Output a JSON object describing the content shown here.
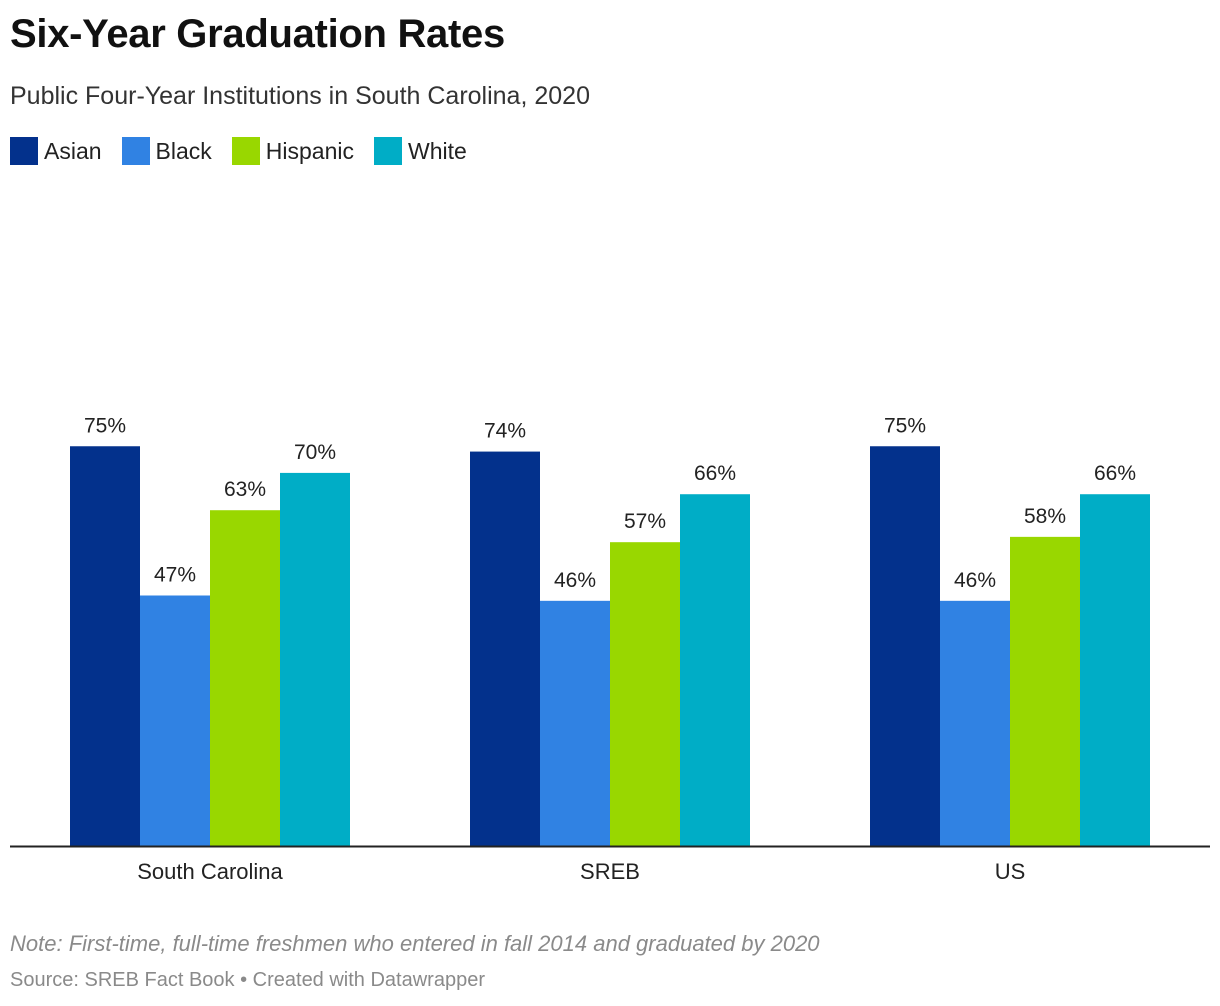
{
  "chart_data": {
    "type": "bar",
    "title": "Six-Year Graduation Rates",
    "subtitle": "Public Four-Year Institutions in South Carolina, 2020",
    "categories": [
      "South Carolina",
      "SREB",
      "US"
    ],
    "series": [
      {
        "name": "Asian",
        "color": "#03318c",
        "values": [
          75,
          74,
          75
        ],
        "labels": [
          "75%",
          "74%",
          "75%"
        ]
      },
      {
        "name": "Black",
        "color": "#3082e3",
        "values": [
          47,
          46,
          46
        ],
        "labels": [
          "47%",
          "46%",
          "46%"
        ]
      },
      {
        "name": "Hispanic",
        "color": "#99d700",
        "values": [
          63,
          57,
          58
        ],
        "labels": [
          "63%",
          "57%",
          "58%"
        ]
      },
      {
        "name": "White",
        "color": "#00adc6",
        "values": [
          70,
          66,
          66
        ],
        "labels": [
          "70%",
          "66%",
          "66%"
        ]
      }
    ],
    "ylim": [
      0,
      80
    ],
    "grid": false,
    "legend_position": "top-left",
    "note": "Note: First-time, full-time freshmen who entered in fall 2014 and graduated by 2020",
    "source": "Source: SREB Fact Book • Created with Datawrapper"
  }
}
